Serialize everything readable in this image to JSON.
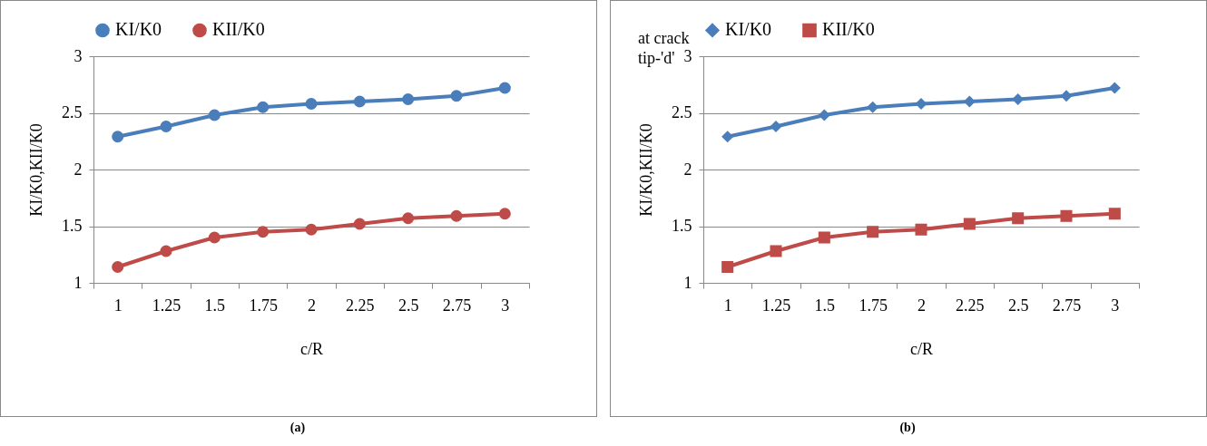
{
  "chart_data": [
    {
      "type": "line",
      "xlabel": "c/R",
      "ylabel": "KI/K0,KII/K0",
      "categories": [
        "1",
        "1.25",
        "1.5",
        "1.75",
        "2",
        "2.25",
        "2.5",
        "2.75",
        "3"
      ],
      "series": [
        {
          "name": "KI/K0",
          "color": "#4a7ebb",
          "marker": "circle",
          "values": [
            2.29,
            2.38,
            2.48,
            2.55,
            2.58,
            2.6,
            2.62,
            2.65,
            2.72
          ]
        },
        {
          "name": "KII/K0",
          "color": "#be4b48",
          "marker": "circle",
          "values": [
            1.14,
            1.28,
            1.4,
            1.45,
            1.47,
            1.52,
            1.57,
            1.59,
            1.61
          ]
        }
      ],
      "ylim": [
        1,
        3
      ],
      "yticks": [
        1,
        1.5,
        2,
        2.5,
        3
      ],
      "grid": "y",
      "legend": "top",
      "line_style": "solid",
      "annotations": [
        "(a)"
      ]
    },
    {
      "type": "line",
      "xlabel": "c/R",
      "ylabel": "KI/K0,KII/K0",
      "categories": [
        "1",
        "1.25",
        "1.5",
        "1.75",
        "2",
        "2.25",
        "2.5",
        "2.75",
        "3"
      ],
      "series": [
        {
          "name": "KI/K0",
          "color": "#4a7ebb",
          "marker": "diamond",
          "values": [
            2.29,
            2.38,
            2.48,
            2.55,
            2.58,
            2.6,
            2.62,
            2.65,
            2.72
          ]
        },
        {
          "name": "KII/K0",
          "color": "#be4b48",
          "marker": "square",
          "values": [
            1.14,
            1.28,
            1.4,
            1.45,
            1.47,
            1.52,
            1.57,
            1.59,
            1.61
          ]
        }
      ],
      "ylim": [
        1,
        3
      ],
      "yticks": [
        1,
        1.5,
        2,
        2.5,
        3
      ],
      "grid": "y",
      "legend": "top",
      "line_style": "solid",
      "annotations": [
        "at crack tip-'d'",
        "(b)"
      ]
    }
  ]
}
